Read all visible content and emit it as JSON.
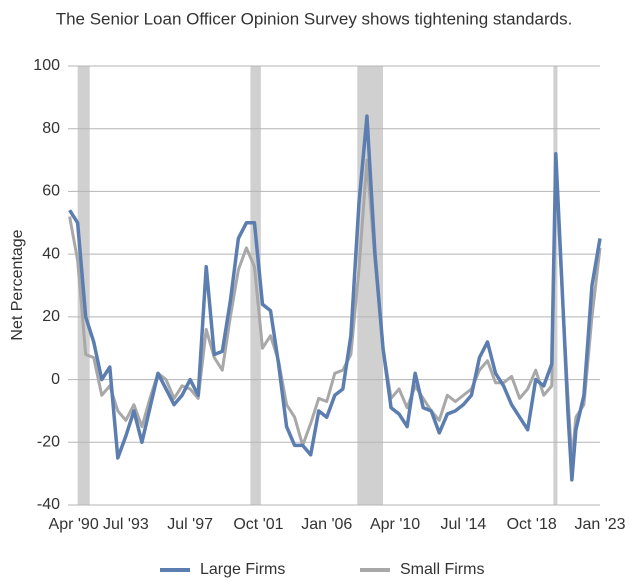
{
  "chart_data": {
    "type": "line",
    "title": "The Senior Loan Officer Opinion Survey shows tightening standards.",
    "y_label": "Net Percentage",
    "x": [
      1990.0,
      1990.5,
      1991.0,
      1991.5,
      1992.0,
      1992.5,
      1993.0,
      1993.5,
      1994.0,
      1994.5,
      1995.0,
      1995.5,
      1996.0,
      1996.5,
      1997.0,
      1997.5,
      1998.0,
      1998.5,
      1999.0,
      1999.5,
      2000.0,
      2000.5,
      2001.0,
      2001.5,
      2002.0,
      2002.5,
      2003.0,
      2003.5,
      2004.0,
      2004.5,
      2005.0,
      2005.5,
      2006.0,
      2006.5,
      2007.0,
      2007.5,
      2008.0,
      2008.5,
      2009.0,
      2009.5,
      2010.0,
      2010.5,
      2011.0,
      2011.5,
      2012.0,
      2012.5,
      2013.0,
      2013.5,
      2014.0,
      2014.5,
      2015.0,
      2015.5,
      2016.0,
      2016.5,
      2017.0,
      2017.5,
      2018.0,
      2018.5,
      2019.0,
      2019.5,
      2020.0,
      2020.25,
      2020.5,
      2021.0,
      2021.25,
      2021.5,
      2022.0,
      2022.5,
      2023.0
    ],
    "series": [
      {
        "name": "Large Firms",
        "color": "#5b7db0",
        "values": [
          54,
          50,
          20,
          12,
          0,
          4,
          -25,
          -18,
          -10,
          -20,
          -9,
          2,
          -3,
          -8,
          -5,
          0,
          -5,
          36,
          8,
          9,
          25,
          45,
          50,
          50,
          24,
          22,
          5,
          -15,
          -21,
          -21,
          -24,
          -10,
          -12,
          -5,
          -3,
          14,
          56,
          84,
          40,
          10,
          -9,
          -11,
          -15,
          2,
          -9,
          -10,
          -17,
          -11,
          -10,
          -8,
          -5,
          7,
          12,
          2,
          -2,
          -8,
          -12,
          -16,
          0,
          -2,
          5,
          72,
          45,
          -10,
          -32,
          -16,
          -5,
          30,
          45
        ]
      },
      {
        "name": "Small Firms",
        "color": "#a8a8a8",
        "values": [
          52,
          38,
          8,
          7,
          -5,
          -2,
          -10,
          -13,
          -8,
          -15,
          -6,
          2,
          0,
          -6,
          -2,
          -3,
          -6,
          16,
          7,
          3,
          20,
          35,
          42,
          36,
          10,
          14,
          6,
          -8,
          -12,
          -21,
          -14,
          -6,
          -7,
          2,
          3,
          8,
          35,
          70,
          38,
          10,
          -6,
          -3,
          -9,
          -2,
          -6,
          -10,
          -13,
          -5,
          -7,
          -5,
          -3,
          3,
          6,
          -1,
          -1,
          1,
          -6,
          -3,
          3,
          -5,
          -2,
          70,
          42,
          -5,
          -26,
          -12,
          -8,
          20,
          42
        ]
      }
    ],
    "shaded_ranges": [
      [
        1990.5,
        1991.25
      ],
      [
        2001.25,
        2001.9
      ],
      [
        2007.9,
        2009.5
      ],
      [
        2020.1,
        2020.35
      ]
    ],
    "shade_color": "#d0d0d0",
    "xlim": [
      1989.9,
      2023.0
    ],
    "xticks": [
      {
        "value": 1990.25,
        "label": "Apr '90"
      },
      {
        "value": 1993.5,
        "label": "Jul '93"
      },
      {
        "value": 1997.5,
        "label": "Jul '97"
      },
      {
        "value": 2001.75,
        "label": "Oct '01"
      },
      {
        "value": 2006.0,
        "label": "Jan '06"
      },
      {
        "value": 2010.25,
        "label": "Apr '10"
      },
      {
        "value": 2014.5,
        "label": "Jul '14"
      },
      {
        "value": 2018.75,
        "label": "Oct '18"
      },
      {
        "value": 2023.0,
        "label": "Jan '23"
      }
    ],
    "ylim": [
      -40,
      100
    ],
    "yticks": [
      -40,
      -20,
      0,
      20,
      40,
      60,
      80,
      100
    ],
    "grid": true,
    "legend": "bottom"
  }
}
